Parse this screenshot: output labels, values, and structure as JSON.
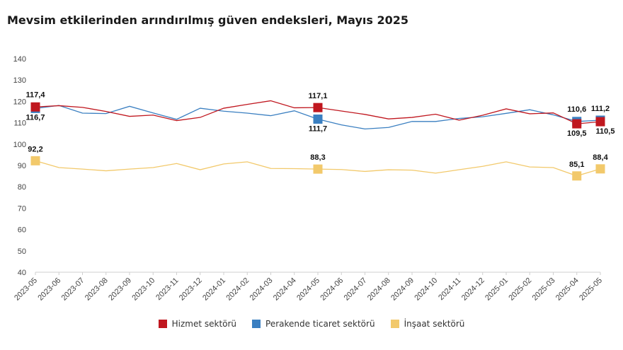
{
  "chart_data": {
    "type": "line",
    "title": "Mevsim etkilerinden arındırılmış güven endeksleri, Mayıs 2025",
    "xlabel": "",
    "ylabel": "",
    "ylim": [
      40,
      140
    ],
    "yticks": [
      "40",
      "50",
      "60",
      "70",
      "80",
      "90",
      "100",
      "110",
      "120",
      "130",
      "140"
    ],
    "categories": [
      "2023-05",
      "2023-06",
      "2023-07",
      "2023-08",
      "2023-09",
      "2023-10",
      "2023-11",
      "2023-12",
      "2024-01",
      "2024-02",
      "2024-03",
      "2024-04",
      "2024-05",
      "2024-06",
      "2024-07",
      "2024-08",
      "2024-09",
      "2024-10",
      "2024-11",
      "2024-12",
      "2025-01",
      "2025-02",
      "2025-03",
      "2025-04",
      "2025-05"
    ],
    "grid": false,
    "legend_position": "bottom",
    "series": [
      {
        "name": "Hizmet sektörü",
        "color": "#c0171f",
        "values": [
          117.4,
          118.0,
          117.2,
          115.3,
          113.0,
          113.6,
          111.0,
          112.5,
          116.8,
          118.6,
          120.3,
          117.0,
          117.1,
          115.5,
          113.9,
          111.8,
          112.5,
          114.0,
          111.2,
          113.5,
          116.5,
          114.2,
          114.6,
          109.5,
          110.5
        ],
        "markers": [
          {
            "index": 0,
            "label": "117,4"
          },
          {
            "index": 12,
            "label": "117,1"
          },
          {
            "index": 23,
            "label": "109,5"
          },
          {
            "index": 24,
            "label": "110,5"
          }
        ]
      },
      {
        "name": "Perakende ticaret sektörü",
        "color": "#3a7fc1",
        "values": [
          116.7,
          118.1,
          114.5,
          114.3,
          117.7,
          114.6,
          111.6,
          116.8,
          115.4,
          114.5,
          113.3,
          115.6,
          111.7,
          109.0,
          107.1,
          107.8,
          110.6,
          110.6,
          112.0,
          112.8,
          114.4,
          116.1,
          113.7,
          110.6,
          111.2
        ],
        "markers": [
          {
            "index": 0,
            "label": "116,7"
          },
          {
            "index": 12,
            "label": "111,7"
          },
          {
            "index": 23,
            "label": "110,6"
          },
          {
            "index": 24,
            "label": "111,2"
          }
        ]
      },
      {
        "name": "İnşaat sektörü",
        "color": "#f2c96b",
        "values": [
          92.2,
          89.0,
          88.3,
          87.5,
          88.3,
          89.0,
          90.9,
          88.0,
          90.7,
          91.7,
          88.6,
          88.5,
          88.3,
          88.1,
          87.2,
          88.0,
          87.8,
          86.4,
          88.0,
          89.6,
          91.7,
          89.3,
          89.0,
          85.1,
          88.4
        ],
        "markers": [
          {
            "index": 0,
            "label": "92,2"
          },
          {
            "index": 12,
            "label": "88,3"
          },
          {
            "index": 23,
            "label": "85,1"
          },
          {
            "index": 24,
            "label": "88,4"
          }
        ]
      }
    ]
  }
}
